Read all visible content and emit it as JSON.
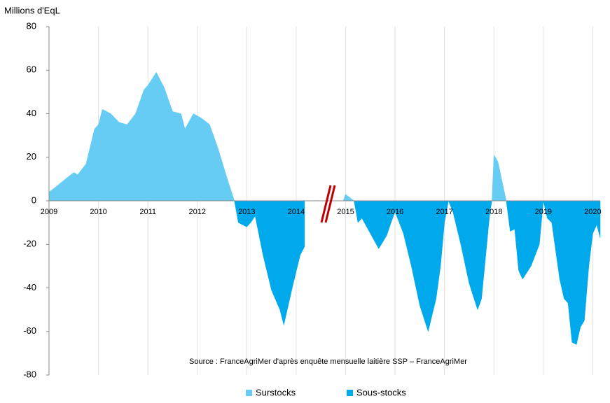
{
  "chart_data": {
    "type": "area",
    "y_axis_label": "Millions d'EqL",
    "annotation": "Source : FranceAgriMer d'après enquête mensuelle laitière SSP – FranceAgriMer",
    "x": [
      2009.0,
      2009.17,
      2009.33,
      2009.5,
      2009.58,
      2009.75,
      2009.92,
      2010.0,
      2010.08,
      2010.25,
      2010.42,
      2010.58,
      2010.75,
      2010.92,
      2011.0,
      2011.17,
      2011.33,
      2011.5,
      2011.67,
      2011.75,
      2011.92,
      2012.08,
      2012.25,
      2012.42,
      2012.58,
      2012.75,
      2012.83,
      2013.0,
      2013.08,
      2013.17,
      2013.33,
      2013.5,
      2013.67,
      2013.75,
      2013.92,
      2014.08,
      2014.17,
      2014.5,
      2014.95,
      2015.0,
      2015.17,
      2015.25,
      2015.33,
      2015.5,
      2015.67,
      2015.83,
      2015.92,
      2016.0,
      2016.17,
      2016.33,
      2016.5,
      2016.67,
      2016.83,
      2016.92,
      2017.0,
      2017.08,
      2017.17,
      2017.33,
      2017.5,
      2017.67,
      2017.75,
      2017.92,
      2017.96,
      2018.0,
      2018.08,
      2018.25,
      2018.33,
      2018.42,
      2018.5,
      2018.58,
      2018.75,
      2018.92,
      2019.0,
      2019.08,
      2019.17,
      2019.33,
      2019.42,
      2019.5,
      2019.58,
      2019.67,
      2019.75,
      2019.83,
      2019.92,
      2020.0,
      2020.08,
      2020.15
    ],
    "series": [
      {
        "name": "Surstocks",
        "color": "#66ccf4",
        "values": [
          4,
          7,
          10,
          13,
          12,
          17,
          33,
          35,
          42,
          40,
          36,
          35,
          40,
          51,
          53,
          59,
          52,
          41,
          40,
          33,
          40,
          38,
          35,
          24,
          12,
          0,
          null,
          null,
          null,
          null,
          null,
          null,
          null,
          null,
          null,
          null,
          null,
          null,
          0,
          3,
          0,
          null,
          null,
          null,
          null,
          null,
          null,
          null,
          null,
          null,
          null,
          null,
          null,
          null,
          null,
          0,
          null,
          null,
          null,
          null,
          null,
          null,
          0,
          21,
          18,
          0,
          null,
          null,
          null,
          null,
          null,
          null,
          0,
          null,
          null,
          null,
          null,
          null,
          null,
          null,
          null,
          null,
          null,
          null,
          null,
          null
        ]
      },
      {
        "name": "Sous-stocks",
        "color": "#00a9ec",
        "values": [
          null,
          null,
          null,
          null,
          null,
          null,
          null,
          null,
          null,
          null,
          null,
          null,
          null,
          null,
          null,
          null,
          null,
          null,
          null,
          null,
          null,
          null,
          null,
          null,
          null,
          0,
          -10,
          -12,
          -10,
          -7,
          -25,
          -41,
          -50,
          -57,
          -40,
          -25,
          -21,
          null,
          0,
          null,
          0,
          -10,
          -8,
          -15,
          -22,
          -16,
          -10,
          -5,
          -15,
          -30,
          -48,
          -60,
          -45,
          -30,
          -10,
          0,
          -5,
          -20,
          -38,
          -50,
          -45,
          -5,
          0,
          null,
          null,
          0,
          -14,
          -13,
          -32,
          -36,
          -30,
          -20,
          0,
          -8,
          -10,
          -36,
          -45,
          -47,
          -65,
          -66,
          -58,
          -55,
          -30,
          -15,
          -11,
          -17
        ]
      }
    ],
    "xlim": [
      2009,
      2020.15
    ],
    "xticks": [
      2009,
      2010,
      2011,
      2012,
      2013,
      2014,
      2015,
      2016,
      2017,
      2018,
      2019,
      2020
    ],
    "ylim": [
      -80,
      80
    ],
    "yticks": [
      -80,
      -60,
      -40,
      -20,
      0,
      20,
      40,
      60,
      80
    ],
    "grid": "x"
  }
}
